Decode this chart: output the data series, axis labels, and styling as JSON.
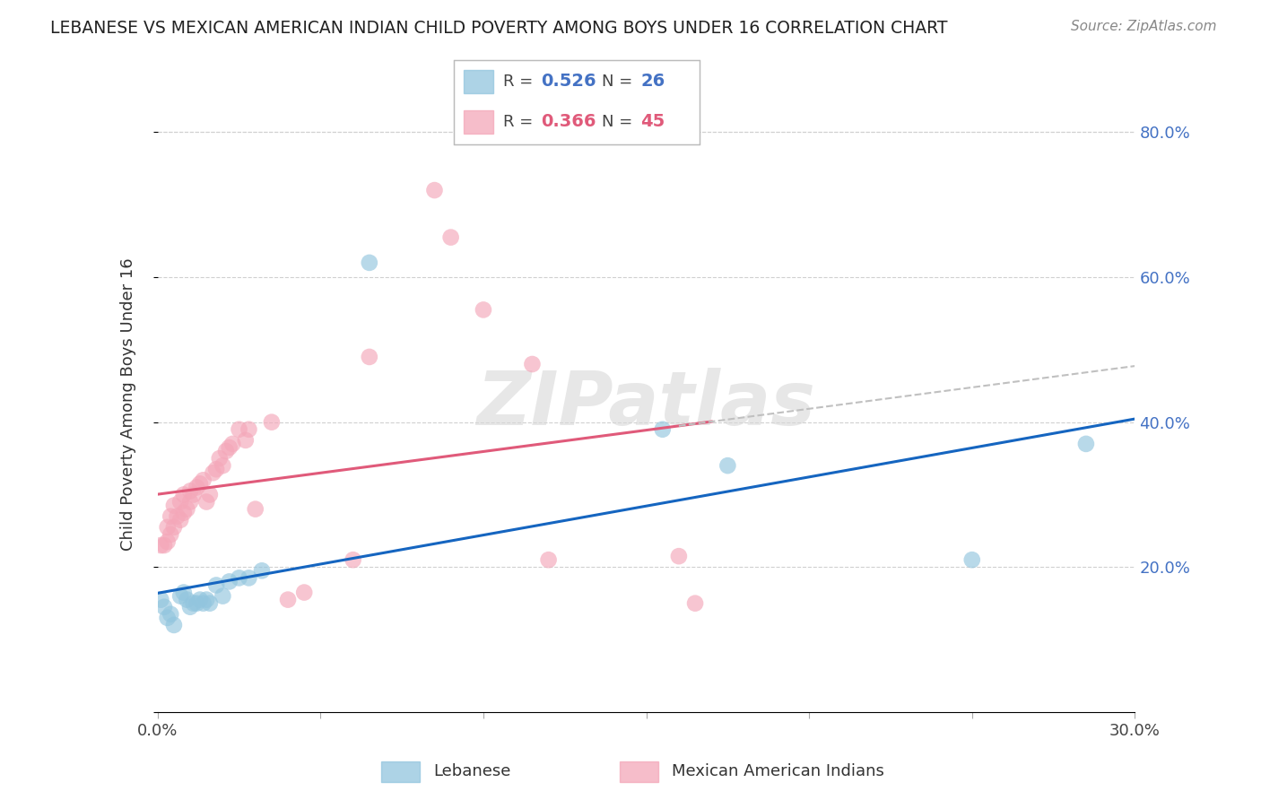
{
  "title": "LEBANESE VS MEXICAN AMERICAN INDIAN CHILD POVERTY AMONG BOYS UNDER 16 CORRELATION CHART",
  "source": "Source: ZipAtlas.com",
  "ylabel": "Child Poverty Among Boys Under 16",
  "xlim": [
    0.0,
    0.3
  ],
  "ylim": [
    0.0,
    0.85
  ],
  "blue_color": "#92c5de",
  "pink_color": "#f4a7b9",
  "line_blue": "#1565c0",
  "line_pink": "#e05a7a",
  "line_gray_dashed": "#c0c0c0",
  "watermark": "ZIPatlas",
  "leb_x": [
    0.001,
    0.002,
    0.003,
    0.004,
    0.005,
    0.007,
    0.008,
    0.009,
    0.01,
    0.011,
    0.012,
    0.013,
    0.014,
    0.015,
    0.016,
    0.018,
    0.02,
    0.022,
    0.025,
    0.028,
    0.032,
    0.065,
    0.155,
    0.175,
    0.25,
    0.285
  ],
  "leb_y": [
    0.155,
    0.145,
    0.13,
    0.135,
    0.12,
    0.16,
    0.165,
    0.155,
    0.145,
    0.15,
    0.15,
    0.155,
    0.15,
    0.155,
    0.15,
    0.175,
    0.16,
    0.18,
    0.185,
    0.185,
    0.195,
    0.62,
    0.39,
    0.34,
    0.21,
    0.37
  ],
  "mex_x": [
    0.001,
    0.002,
    0.003,
    0.003,
    0.004,
    0.004,
    0.005,
    0.005,
    0.006,
    0.007,
    0.007,
    0.008,
    0.008,
    0.009,
    0.01,
    0.01,
    0.011,
    0.012,
    0.013,
    0.014,
    0.015,
    0.016,
    0.017,
    0.018,
    0.019,
    0.02,
    0.021,
    0.022,
    0.023,
    0.025,
    0.027,
    0.028,
    0.03,
    0.035,
    0.04,
    0.045,
    0.06,
    0.065,
    0.085,
    0.09,
    0.1,
    0.115,
    0.12,
    0.16,
    0.165
  ],
  "mex_y": [
    0.23,
    0.23,
    0.235,
    0.255,
    0.245,
    0.27,
    0.255,
    0.285,
    0.27,
    0.265,
    0.29,
    0.275,
    0.3,
    0.28,
    0.29,
    0.305,
    0.3,
    0.31,
    0.315,
    0.32,
    0.29,
    0.3,
    0.33,
    0.335,
    0.35,
    0.34,
    0.36,
    0.365,
    0.37,
    0.39,
    0.375,
    0.39,
    0.28,
    0.4,
    0.155,
    0.165,
    0.21,
    0.49,
    0.72,
    0.655,
    0.555,
    0.48,
    0.21,
    0.215,
    0.15
  ]
}
